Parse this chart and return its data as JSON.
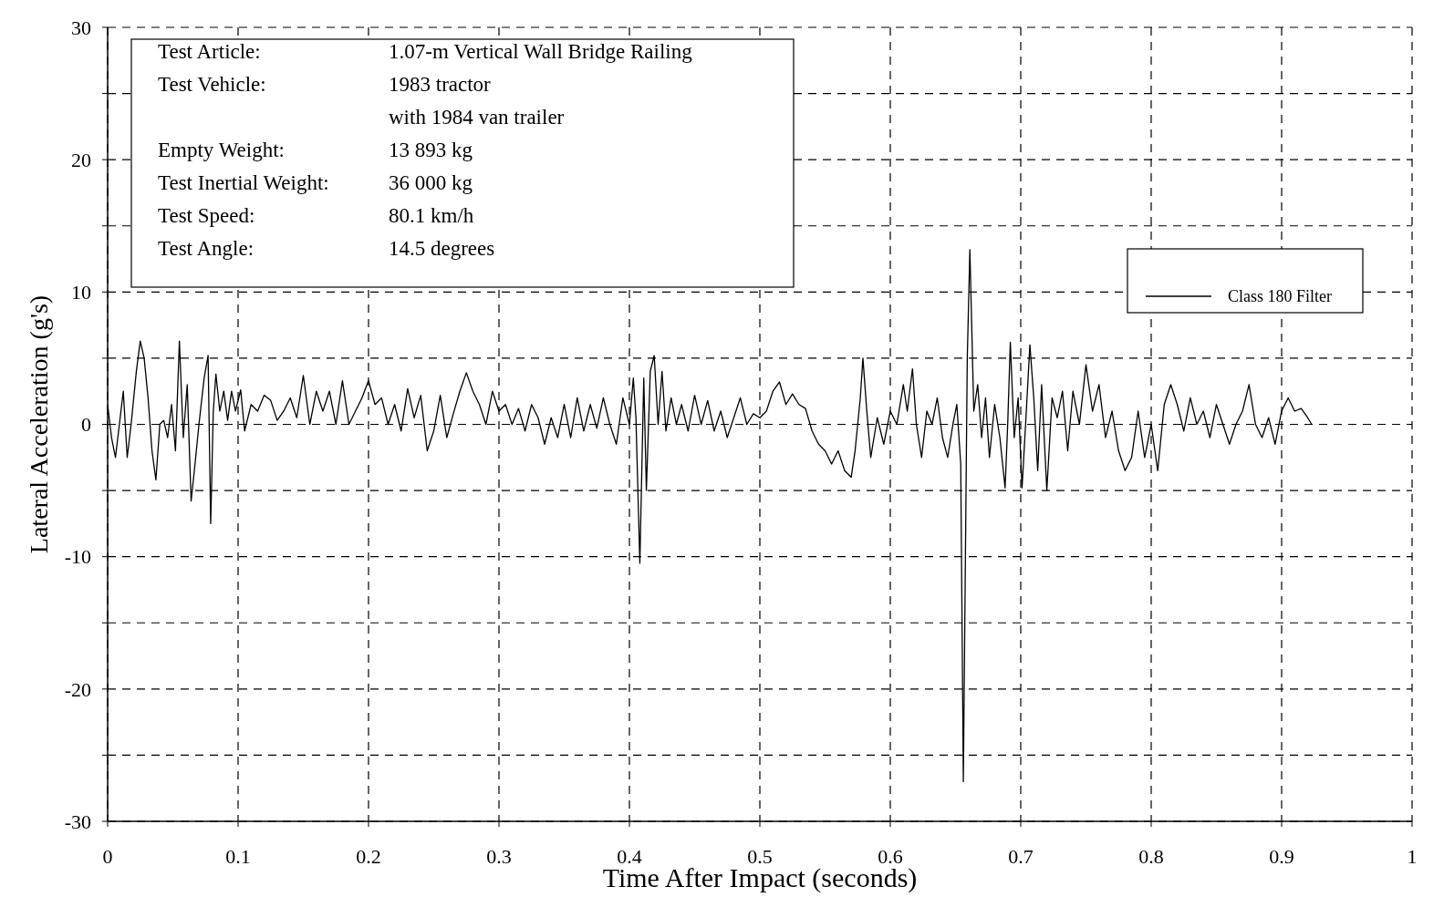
{
  "chart_data": {
    "type": "line",
    "xlabel": "Time After Impact (seconds)",
    "ylabel": "Lateral Acceleration (g's)",
    "xlim": [
      0,
      1
    ],
    "xticks": [
      0,
      0.1,
      0.2,
      0.3,
      0.4,
      0.5,
      0.6,
      0.7,
      0.8,
      0.9,
      1
    ],
    "ylim": [
      -30,
      30
    ],
    "yticks": [
      -30,
      {
        "value": -25,
        "label": null
      },
      -20,
      {
        "value": -15,
        "label": null
      },
      -10,
      {
        "value": -5,
        "label": null
      },
      0,
      {
        "value": 5,
        "label": null
      },
      10,
      {
        "value": 15,
        "label": null
      },
      20,
      {
        "value": 25,
        "label": null
      },
      30
    ],
    "grid": true,
    "legend": "right",
    "line_style": "solid",
    "annotations": [
      "Test Article:\t1.07-m Vertical Wall Bridge Railing",
      "Test Vehicle:\t1983 tractor",
      "\twith 1984 van trailer",
      "Empty Weight:\t13 893 kg",
      "Test Inertial Weight:\t36 000 kg",
      "Test Speed:\t80.1 km/h",
      "Test Angle:\t14.5 degrees"
    ],
    "series": [
      {
        "name": "Class 180 Filter",
        "color": "#000000",
        "x": [
          0,
          0.003,
          0.006,
          0.009,
          0.012,
          0.015,
          0.018,
          0.022,
          0.025,
          0.028,
          0.031,
          0.034,
          0.037,
          0.04,
          0.043,
          0.046,
          0.049,
          0.052,
          0.055,
          0.058,
          0.061,
          0.064,
          0.067,
          0.07,
          0.074,
          0.077,
          0.079,
          0.081,
          0.083,
          0.086,
          0.089,
          0.092,
          0.095,
          0.098,
          0.102,
          0.105,
          0.11,
          0.115,
          0.12,
          0.125,
          0.13,
          0.135,
          0.14,
          0.145,
          0.15,
          0.155,
          0.16,
          0.165,
          0.17,
          0.175,
          0.18,
          0.185,
          0.19,
          0.195,
          0.2,
          0.205,
          0.21,
          0.215,
          0.22,
          0.225,
          0.23,
          0.235,
          0.24,
          0.245,
          0.25,
          0.255,
          0.26,
          0.265,
          0.27,
          0.275,
          0.28,
          0.285,
          0.29,
          0.295,
          0.3,
          0.305,
          0.31,
          0.315,
          0.32,
          0.325,
          0.33,
          0.335,
          0.34,
          0.345,
          0.35,
          0.355,
          0.36,
          0.365,
          0.37,
          0.375,
          0.38,
          0.385,
          0.39,
          0.395,
          0.4,
          0.403,
          0.405,
          0.408,
          0.411,
          0.413,
          0.416,
          0.419,
          0.422,
          0.425,
          0.428,
          0.432,
          0.436,
          0.44,
          0.445,
          0.45,
          0.455,
          0.46,
          0.465,
          0.47,
          0.475,
          0.48,
          0.485,
          0.49,
          0.495,
          0.5,
          0.505,
          0.51,
          0.515,
          0.52,
          0.525,
          0.53,
          0.535,
          0.54,
          0.545,
          0.55,
          0.555,
          0.56,
          0.565,
          0.57,
          0.573,
          0.577,
          0.579,
          0.582,
          0.585,
          0.59,
          0.595,
          0.6,
          0.605,
          0.61,
          0.613,
          0.617,
          0.62,
          0.624,
          0.628,
          0.632,
          0.636,
          0.64,
          0.644,
          0.648,
          0.651,
          0.654,
          0.656,
          0.659,
          0.661,
          0.664,
          0.667,
          0.67,
          0.673,
          0.676,
          0.68,
          0.684,
          0.688,
          0.69,
          0.692,
          0.695,
          0.698,
          0.701,
          0.704,
          0.707,
          0.71,
          0.713,
          0.716,
          0.72,
          0.724,
          0.728,
          0.732,
          0.736,
          0.74,
          0.745,
          0.75,
          0.755,
          0.76,
          0.765,
          0.77,
          0.775,
          0.78,
          0.785,
          0.79,
          0.795,
          0.8,
          0.805,
          0.81,
          0.815,
          0.82,
          0.825,
          0.83,
          0.835,
          0.84,
          0.845,
          0.85,
          0.855,
          0.86,
          0.865,
          0.87,
          0.875,
          0.88,
          0.885,
          0.89,
          0.895,
          0.9,
          0.905,
          0.91,
          0.915,
          0.92,
          0.923
        ],
        "values": [
          1.5,
          -1,
          -2.5,
          0,
          2.5,
          -2.5,
          0,
          4,
          6.3,
          5,
          2,
          -2,
          -4.2,
          0,
          0.3,
          -1,
          1.5,
          -2,
          6.3,
          -1,
          3,
          -5.8,
          -3,
          0,
          3.5,
          5.2,
          -7.5,
          1,
          3.8,
          1,
          2.5,
          0.3,
          2.5,
          1,
          2.6,
          -0.5,
          1.5,
          1,
          2.2,
          1.8,
          0.3,
          1,
          2,
          0.5,
          3.7,
          0,
          2.5,
          1,
          2.5,
          0,
          3.3,
          0,
          1,
          2,
          3.3,
          1.5,
          2,
          0,
          1.5,
          -0.5,
          2.7,
          0.5,
          2.2,
          -2,
          -0.5,
          2.2,
          -1,
          0.8,
          2.5,
          3.9,
          2.5,
          1.5,
          0,
          2.5,
          1,
          1.5,
          0,
          1.2,
          -0.5,
          1.5,
          0.5,
          -1.5,
          0.5,
          -1,
          1.5,
          -1,
          2,
          -0.5,
          1.5,
          -0.3,
          2,
          0,
          -1.5,
          2,
          0,
          3.5,
          0.5,
          -10.5,
          3.5,
          -5,
          4,
          5.2,
          0,
          4,
          -0.5,
          2,
          0,
          1.5,
          -0.5,
          2.2,
          0,
          1.8,
          -0.5,
          1,
          -1,
          0.5,
          2,
          0,
          0.8,
          0.5,
          1,
          2.5,
          3.2,
          1.5,
          2.3,
          1.5,
          1.2,
          -0.5,
          -1.5,
          -2,
          -3,
          -2,
          -3.5,
          -4,
          -2,
          2,
          5,
          1,
          -2.5,
          0.5,
          -1.5,
          1,
          0,
          3,
          1,
          4.2,
          0,
          -2.5,
          1,
          0,
          2,
          -1,
          -2.5,
          0,
          1.5,
          -3,
          -27,
          5,
          13.2,
          1,
          3,
          -1,
          2,
          -2.5,
          1.5,
          -1,
          -4.8,
          0,
          6.2,
          -1,
          2,
          -4.8,
          0.5,
          6,
          2,
          -3.5,
          3,
          -5,
          2,
          0.5,
          2.5,
          -2,
          2.5,
          0,
          4.5,
          1,
          3,
          -1,
          1,
          -2,
          -3.5,
          -2.5,
          1,
          -2.5,
          0,
          -3.5,
          1.5,
          3,
          1.5,
          -0.5,
          2,
          0,
          1,
          -1,
          1.5,
          0,
          -1.5,
          0,
          1,
          3,
          0,
          -1,
          0.5,
          -1.5,
          1,
          2,
          1,
          1.2,
          0.5,
          0
        ]
      }
    ]
  }
}
